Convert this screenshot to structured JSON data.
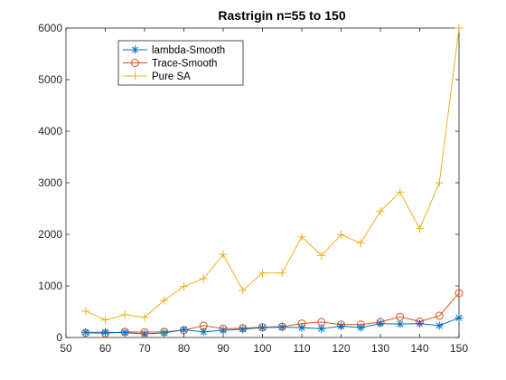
{
  "chart_data": {
    "type": "line",
    "title": "Rastrigin n=55 to 150",
    "xlabel": "",
    "ylabel": "",
    "xlim": [
      50,
      150
    ],
    "ylim": [
      0,
      6000
    ],
    "x_ticks": [
      50,
      60,
      70,
      80,
      90,
      100,
      110,
      120,
      130,
      140,
      150
    ],
    "y_ticks": [
      0,
      1000,
      2000,
      3000,
      4000,
      5000,
      6000
    ],
    "grid": false,
    "legend_placement": "top-left",
    "x": [
      55,
      60,
      65,
      70,
      75,
      80,
      85,
      90,
      95,
      100,
      105,
      110,
      115,
      120,
      125,
      130,
      135,
      140,
      145,
      150
    ],
    "series": [
      {
        "name": "lambda-Smooth",
        "color": "#0072BD",
        "marker": "asterisk",
        "values": [
          100,
          100,
          95,
          70,
          90,
          150,
          110,
          140,
          160,
          190,
          200,
          190,
          170,
          220,
          190,
          270,
          260,
          270,
          230,
          380
        ]
      },
      {
        "name": "Trace-Smooth",
        "color": "#D95319",
        "marker": "circle",
        "values": [
          90,
          80,
          110,
          100,
          110,
          140,
          230,
          170,
          180,
          200,
          210,
          270,
          300,
          250,
          250,
          300,
          400,
          310,
          420,
          860
        ]
      },
      {
        "name": "Pure SA",
        "color": "#EDB120",
        "marker": "plus",
        "values": [
          510,
          340,
          440,
          390,
          720,
          990,
          1140,
          1610,
          910,
          1250,
          1250,
          1950,
          1590,
          1990,
          1830,
          2450,
          2820,
          2110,
          3000,
          6000
        ]
      }
    ]
  }
}
